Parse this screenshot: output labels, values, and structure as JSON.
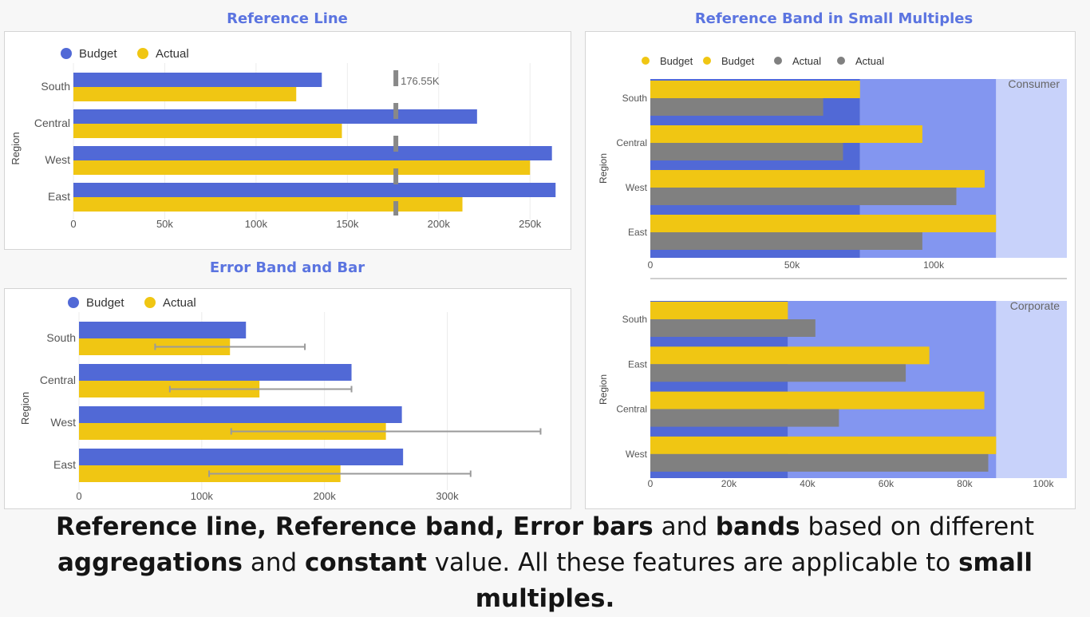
{
  "titles": {
    "reference_line": "Reference Line",
    "error_band": "Error Band and Bar",
    "small_multiples": "Reference Band in Small Multiples"
  },
  "colors": {
    "budget": "#5169d6",
    "actual": "#f0c613",
    "gray": "#808080",
    "band_light": "#c8d2fa",
    "band_mid": "#8396f0",
    "title": "#5b74e0"
  },
  "caption": {
    "p1": "Reference line, Reference band, Error bars",
    "p2": " and ",
    "p3": "bands",
    "p4": " based on different ",
    "p5": "aggregations",
    "p6": " and ",
    "p7": "constant",
    "p8": " value.  All these features are applicable to ",
    "p9": "small multiples."
  },
  "chart_data": [
    {
      "id": "reference-line",
      "type": "bar",
      "orientation": "horizontal",
      "ylabel": "Region",
      "categories": [
        "South",
        "Central",
        "West",
        "East"
      ],
      "series": [
        {
          "name": "Budget",
          "values": [
            136000,
            221000,
            262000,
            264000
          ]
        },
        {
          "name": "Actual",
          "values": [
            122000,
            147000,
            250000,
            213000
          ]
        }
      ],
      "xlim": [
        0,
        270000
      ],
      "xticks": [
        0,
        50000,
        100000,
        150000,
        200000,
        250000
      ],
      "xtick_labels": [
        "0",
        "50k",
        "100k",
        "150k",
        "200k",
        "250k"
      ],
      "reference_line": {
        "value": 176550,
        "label": "176.55K"
      },
      "legend": "top-left",
      "grid": true
    },
    {
      "id": "error-band",
      "type": "bar",
      "orientation": "horizontal",
      "ylabel": "Region",
      "categories": [
        "South",
        "Central",
        "West",
        "East"
      ],
      "series": [
        {
          "name": "Budget",
          "values": [
            136000,
            222000,
            263000,
            264000
          ]
        },
        {
          "name": "Actual",
          "values": [
            123000,
            147000,
            250000,
            213000
          ]
        }
      ],
      "error_bars": [
        {
          "low": 62000,
          "high": 184000
        },
        {
          "low": 74000,
          "high": 222000
        },
        {
          "low": 124000,
          "high": 376000
        },
        {
          "low": 106000,
          "high": 319000
        }
      ],
      "xlim": [
        0,
        390000
      ],
      "xticks": [
        0,
        100000,
        200000,
        300000
      ],
      "xtick_labels": [
        "0",
        "100k",
        "200k",
        "300k"
      ],
      "legend": "top-left",
      "grid": true
    },
    {
      "id": "small-multiples",
      "type": "bar",
      "orientation": "horizontal",
      "ylabel": "Region",
      "legend_entries": [
        {
          "name": "Budget",
          "color": "#f0c613"
        },
        {
          "name": "Budget",
          "color": "#f0c613"
        },
        {
          "name": "Actual",
          "color": "#808080"
        },
        {
          "name": "Actual",
          "color": "#808080"
        }
      ],
      "panels": [
        {
          "label": "Consumer",
          "categories": [
            "South",
            "Central",
            "West",
            "East"
          ],
          "budget": [
            74000,
            96000,
            118000,
            122000
          ],
          "actual": [
            61000,
            68000,
            108000,
            96000
          ],
          "band_inner": 74000,
          "band_outer": 122000,
          "xlim": [
            0,
            147000
          ],
          "xticks": [
            0,
            50000,
            100000
          ],
          "xtick_labels": [
            "0",
            "50k",
            "100k"
          ]
        },
        {
          "label": "Corporate",
          "categories": [
            "South",
            "East",
            "Central",
            "West"
          ],
          "budget": [
            35000,
            71000,
            85000,
            88000
          ],
          "actual": [
            42000,
            65000,
            48000,
            86000
          ],
          "band_inner": 35000,
          "band_outer": 88000,
          "xlim": [
            0,
            106000
          ],
          "xticks": [
            0,
            20000,
            40000,
            60000,
            80000,
            100000
          ],
          "xtick_labels": [
            "0",
            "20k",
            "40k",
            "60k",
            "80k",
            "100k"
          ]
        }
      ]
    }
  ]
}
